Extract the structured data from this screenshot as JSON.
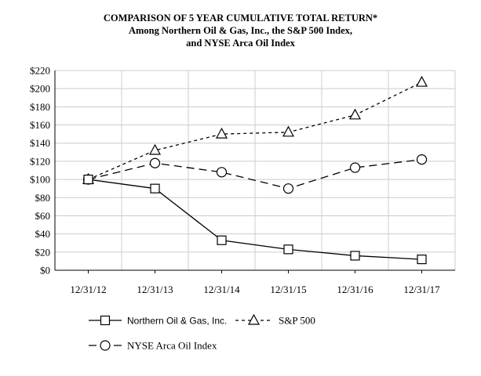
{
  "chart_data": {
    "type": "line",
    "title": "COMPARISON OF 5 YEAR CUMULATIVE TOTAL RETURN*",
    "subtitle_lines": [
      "Among Northern Oil & Gas, Inc., the S&P 500 Index,",
      "and NYSE Arca Oil Index"
    ],
    "categories": [
      "12/31/12",
      "12/31/13",
      "12/31/14",
      "12/31/15",
      "12/31/16",
      "12/31/17"
    ],
    "ylim": [
      0,
      220
    ],
    "yticks": [
      0,
      20,
      40,
      60,
      80,
      100,
      120,
      140,
      160,
      180,
      200,
      220
    ],
    "ytick_labels": [
      "$0",
      "$20",
      "$40",
      "$60",
      "$80",
      "$100",
      "$120",
      "$140",
      "$160",
      "$180",
      "$200",
      "$220"
    ],
    "grid": true,
    "legend_placement": "bottom",
    "series": [
      {
        "name": "Northern Oil & Gas, Inc.",
        "marker": "square",
        "dash": "solid",
        "values": [
          100,
          90,
          33,
          23,
          16,
          12
        ]
      },
      {
        "name": "S&P 500",
        "marker": "triangle",
        "dash": "short-dash",
        "values": [
          100,
          132,
          150,
          152,
          171,
          207
        ]
      },
      {
        "name": "NYSE Arca Oil Index",
        "marker": "circle",
        "dash": "long-dash",
        "values": [
          100,
          118,
          108,
          90,
          113,
          122
        ]
      }
    ]
  }
}
